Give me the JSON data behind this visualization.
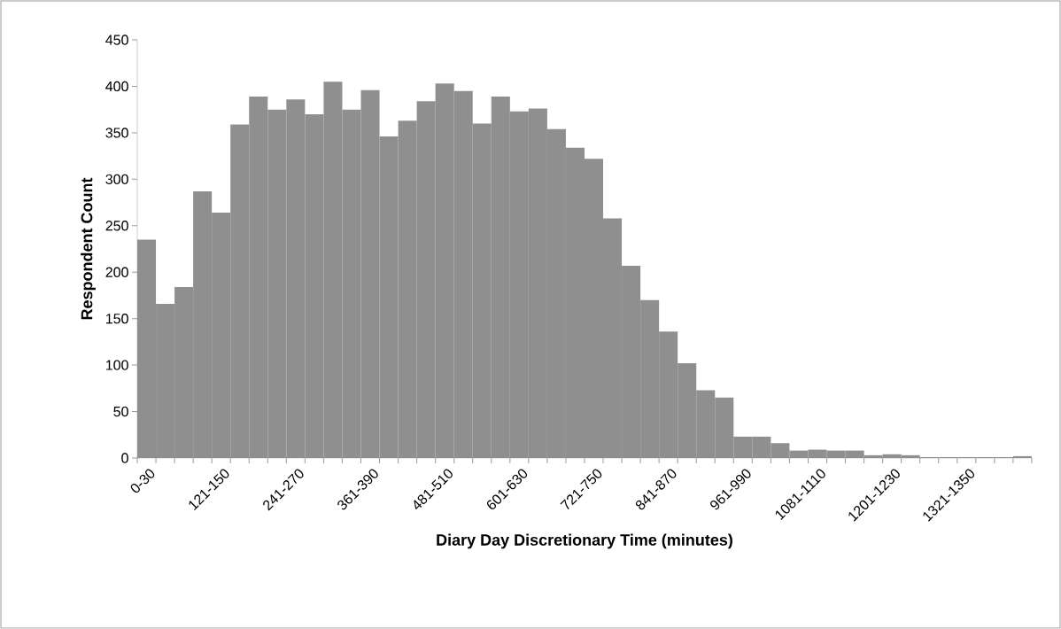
{
  "chart_data": {
    "type": "bar",
    "xlabel": "Diary Day Discretionary Time (minutes)",
    "ylabel": "Respondent Count",
    "categories": [
      "0-30",
      null,
      null,
      null,
      "121-150",
      null,
      null,
      null,
      "241-270",
      null,
      null,
      null,
      "361-390",
      null,
      null,
      null,
      "481-510",
      null,
      null,
      null,
      "601-630",
      null,
      null,
      null,
      "721-750",
      null,
      null,
      null,
      "841-870",
      null,
      null,
      null,
      "961-990",
      null,
      null,
      null,
      "1081-1110",
      null,
      null,
      null,
      "1201-1230",
      null,
      null,
      null,
      "1321-1350",
      null,
      null,
      null
    ],
    "values": [
      235,
      166,
      184,
      287,
      264,
      359,
      389,
      375,
      386,
      370,
      405,
      375,
      396,
      346,
      363,
      384,
      403,
      395,
      360,
      389,
      373,
      376,
      354,
      334,
      322,
      258,
      207,
      170,
      136,
      102,
      73,
      65,
      23,
      23,
      16,
      8,
      9,
      8,
      8,
      3,
      4,
      3,
      1,
      1,
      1,
      1,
      1,
      2
    ],
    "color": "#8f8f8f",
    "ylim": [
      0,
      450
    ],
    "yticks": [
      0,
      50,
      100,
      150,
      200,
      250,
      300,
      350,
      400,
      450
    ],
    "grid": false
  }
}
